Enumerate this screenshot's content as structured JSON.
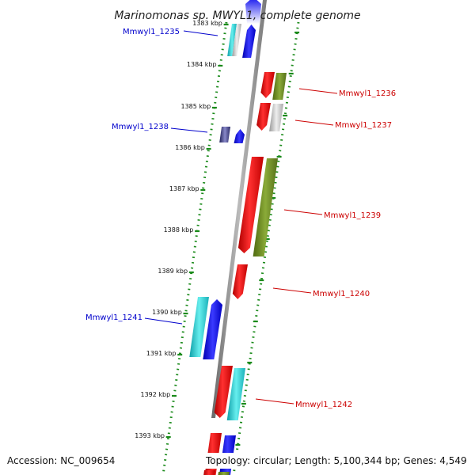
{
  "title": "Marinomonas sp. MWYL1, complete genome",
  "footer": {
    "accession": "Accession: NC_009654",
    "topology": "Topology: circular; Length: 5,100,344 bp; Genes: 4,549"
  },
  "ticks": [
    "1383 kbp",
    "1384 kbp",
    "1385 kbp",
    "1386 kbp",
    "1387 kbp",
    "1388 kbp",
    "1389 kbp",
    "1390 kbp",
    "1391 kbp",
    "1392 kbp",
    "1393 kbp"
  ],
  "genes": {
    "left": [
      "Mmwyl1_1235",
      "Mmwyl1_1238",
      "Mmwyl1_1241"
    ],
    "right": [
      "Mmwyl1_1236",
      "Mmwyl1_1237",
      "Mmwyl1_1239",
      "Mmwyl1_1240",
      "Mmwyl1_1242"
    ]
  },
  "colors": {
    "left_label": "#0000cc",
    "right_label": "#cc0000",
    "tick_dots": "#1a8a1a",
    "axis": "#888888",
    "red": "#ee1111",
    "olive": "#6f8f22",
    "cyan": "#22c8c8",
    "blue": "#1010ee",
    "navy": "#33337a",
    "gray": "#bbbbbb"
  }
}
